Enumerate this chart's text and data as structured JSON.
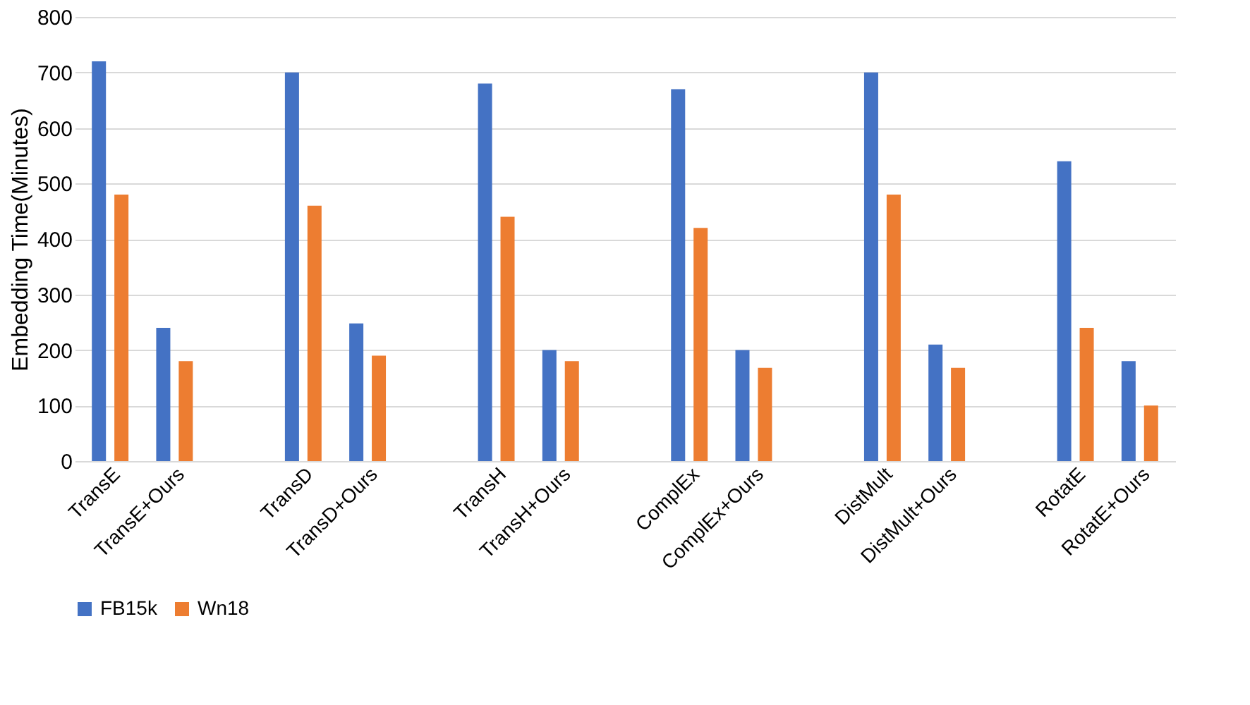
{
  "chart_data": {
    "type": "bar",
    "ylabel": "Embedding Time(Minutes)",
    "categories": [
      "TransE",
      "TransE+Ours",
      null,
      "TransD",
      "TransD+Ours",
      null,
      "TransH",
      "TransH+Ours",
      null,
      "ComplEx",
      "ComplEx+Ours",
      null,
      "DistMult",
      "DistMult+Ours",
      null,
      "RotatE",
      "RotatE+Ours"
    ],
    "series": [
      {
        "name": "FB15k",
        "color": "#4472c4",
        "values": [
          720,
          240,
          null,
          700,
          248,
          null,
          680,
          200,
          null,
          670,
          200,
          null,
          700,
          210,
          null,
          540,
          180
        ]
      },
      {
        "name": "Wn18",
        "color": "#ed7d31",
        "values": [
          480,
          180,
          null,
          460,
          190,
          null,
          440,
          180,
          null,
          420,
          168,
          null,
          480,
          168,
          null,
          240,
          100
        ]
      }
    ],
    "ylim": [
      0,
      800
    ],
    "yticks": [
      0,
      100,
      200,
      300,
      400,
      500,
      600,
      700,
      800
    ],
    "grid": "y",
    "legend": "bottom"
  }
}
